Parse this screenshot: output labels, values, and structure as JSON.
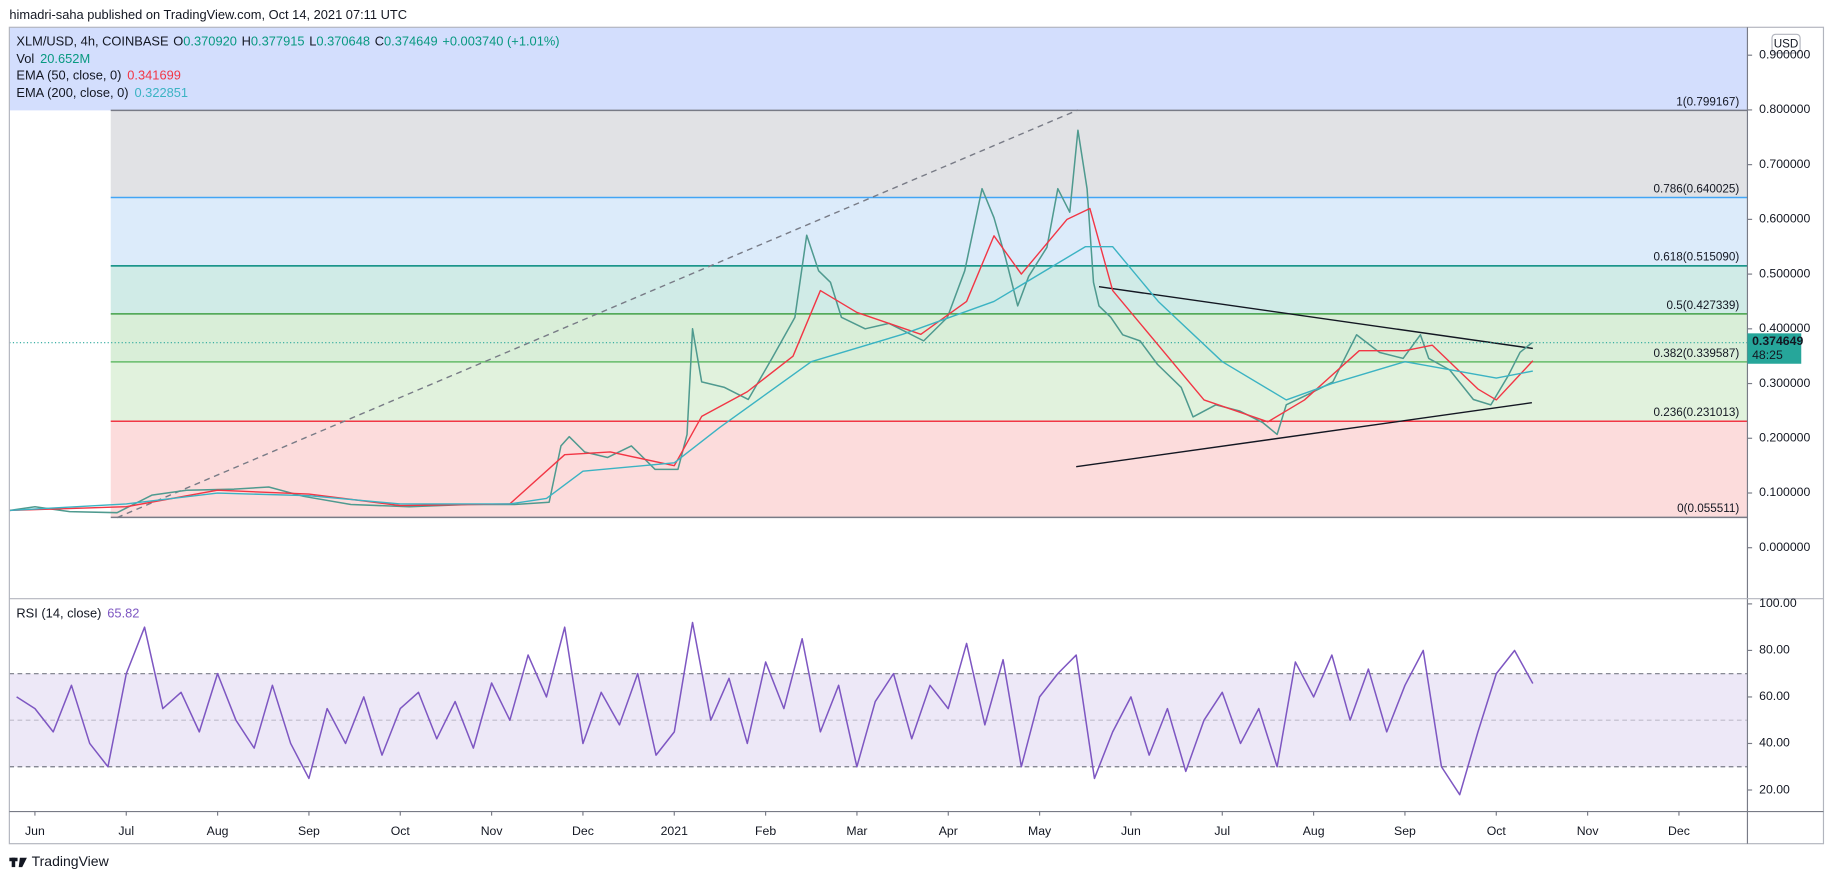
{
  "header": "himadri-saha published on TradingView.com, Oct 14, 2021 07:11 UTC",
  "currency": "USD",
  "footer": "TradingView",
  "chart_data": [
    {
      "type": "line",
      "title": "XLM/USD, 4h, COINBASE",
      "ohlc": [
        {
          "key": "O",
          "value": "0.370920"
        },
        {
          "key": "H",
          "value": "0.377915"
        },
        {
          "key": "L",
          "value": "0.370648"
        },
        {
          "key": "C",
          "value": "0.374649"
        }
      ],
      "change": "+0.003740 (+1.01%)",
      "volume": {
        "name": "Vol",
        "value": "20.652M"
      },
      "xlim": [
        -0.28,
        18.75
      ],
      "ylim": [
        -0.092,
        0.951
      ],
      "yticks": [
        {
          "value": 0,
          "label": "0.000000"
        },
        {
          "value": 0.1,
          "label": "0.100000"
        },
        {
          "value": 0.2,
          "label": "0.200000"
        },
        {
          "value": 0.3,
          "label": "0.300000"
        },
        {
          "value": 0.4,
          "label": "0.400000"
        },
        {
          "value": 0.5,
          "label": "0.500000"
        },
        {
          "value": 0.6,
          "label": "0.600000"
        },
        {
          "value": 0.7,
          "label": "0.700000"
        },
        {
          "value": 0.8,
          "label": "0.800000"
        },
        {
          "value": 0.9,
          "label": "0.900000"
        }
      ],
      "grid": false,
      "top_band_color": "#d3defd",
      "fib_anchor_x": 0.83,
      "fib_levels": [
        {
          "value": 0.799167,
          "label": "1(0.799167)",
          "color": "#787b86",
          "band": "#e1e2e5"
        },
        {
          "value": 0.640025,
          "label": "0.786(0.640025)",
          "color": "#42a5f5",
          "band": "#dcebfa"
        },
        {
          "value": 0.51509,
          "label": "0.618(0.515090)",
          "color": "#00897b",
          "band": "#d0ebe7"
        },
        {
          "value": 0.427339,
          "label": "0.5(0.427339)",
          "color": "#43a047",
          "band": "#d9eed8"
        },
        {
          "value": 0.339587,
          "label": "0.382(0.339587)",
          "color": "#66bb6a",
          "band": "#e1f2dd"
        },
        {
          "value": 0.231013,
          "label": "0.236(0.231013)",
          "color": "#f23645",
          "band": "#fcdcdc"
        },
        {
          "value": 0.055511,
          "label": "0(0.055511)",
          "color": "#787b86",
          "band": null
        }
      ],
      "trendlines": [
        {
          "x": [
            0.9,
            11.42
          ],
          "y": [
            0.055,
            0.8
          ],
          "color": "#787b86",
          "dash": true
        },
        {
          "x": [
            11.65,
            16.4
          ],
          "y": [
            0.477,
            0.364
          ],
          "color": "#131722",
          "dash": false
        },
        {
          "x": [
            11.4,
            16.39
          ],
          "y": [
            0.148,
            0.265
          ],
          "color": "#131722",
          "dash": false
        }
      ],
      "last_price": {
        "value": 0.374649,
        "countdown": "48:25",
        "color": "#26a69a"
      },
      "series": [
        {
          "name": "XLM/USD",
          "color": "#4f9a8f",
          "x": [
            -0.28,
            0,
            0.38,
            0.9,
            1.28,
            1.66,
            2.18,
            2.56,
            2.94,
            3.46,
            4.1,
            4.74,
            5.25,
            5.63,
            5.76,
            5.85,
            6.02,
            6.27,
            6.53,
            6.79,
            7.04,
            7.14,
            7.2,
            7.3,
            7.55,
            7.81,
            8.07,
            8.32,
            8.45,
            8.58,
            8.71,
            8.83,
            9.09,
            9.35,
            9.73,
            9.99,
            10.18,
            10.37,
            10.5,
            10.63,
            10.76,
            10.88,
            11.08,
            11.2,
            11.33,
            11.42,
            11.52,
            11.59,
            11.65,
            11.78,
            11.91,
            12.1,
            12.29,
            12.55,
            12.68,
            12.93,
            13.19,
            13.44,
            13.6,
            13.7,
            13.96,
            14.21,
            14.47,
            14.72,
            14.98,
            15.17,
            15.26,
            15.49,
            15.75,
            15.94,
            16.13,
            16.26,
            16.39
          ],
          "values": [
            0.068,
            0.075,
            0.066,
            0.064,
            0.096,
            0.105,
            0.107,
            0.111,
            0.094,
            0.079,
            0.075,
            0.079,
            0.079,
            0.083,
            0.186,
            0.203,
            0.175,
            0.165,
            0.186,
            0.143,
            0.143,
            0.207,
            0.4,
            0.303,
            0.293,
            0.271,
            0.346,
            0.421,
            0.571,
            0.506,
            0.485,
            0.421,
            0.4,
            0.41,
            0.378,
            0.421,
            0.506,
            0.656,
            0.603,
            0.528,
            0.442,
            0.496,
            0.549,
            0.656,
            0.613,
            0.763,
            0.656,
            0.485,
            0.442,
            0.421,
            0.389,
            0.378,
            0.335,
            0.293,
            0.239,
            0.261,
            0.25,
            0.229,
            0.207,
            0.261,
            0.282,
            0.303,
            0.389,
            0.357,
            0.346,
            0.389,
            0.346,
            0.325,
            0.271,
            0.261,
            0.314,
            0.357,
            0.374649
          ]
        },
        {
          "name": "EMA (50, close, 0)",
          "color": "#f23645",
          "x": [
            -0.28,
            1,
            2,
            3,
            4,
            5.2,
            5.8,
            6.3,
            7,
            7.3,
            7.8,
            8.3,
            8.6,
            9,
            9.7,
            10.2,
            10.5,
            10.8,
            11.3,
            11.55,
            11.8,
            12.3,
            12.8,
            13.5,
            13.9,
            14.5,
            15,
            15.3,
            15.8,
            16,
            16.4
          ],
          "values": [
            0.068,
            0.075,
            0.105,
            0.098,
            0.077,
            0.08,
            0.17,
            0.175,
            0.15,
            0.24,
            0.285,
            0.35,
            0.47,
            0.43,
            0.39,
            0.45,
            0.57,
            0.5,
            0.6,
            0.62,
            0.47,
            0.37,
            0.27,
            0.23,
            0.27,
            0.36,
            0.36,
            0.37,
            0.29,
            0.27,
            0.341699
          ]
        },
        {
          "name": "EMA (200, close, 0)",
          "color": "#3bb3c3",
          "x": [
            -0.28,
            1,
            2,
            3,
            4,
            5.2,
            5.6,
            6,
            7,
            7.5,
            8,
            8.5,
            9.5,
            10.5,
            11.5,
            11.8,
            12.3,
            13,
            13.7,
            14.2,
            15,
            16,
            16.4
          ],
          "values": [
            0.068,
            0.08,
            0.1,
            0.095,
            0.08,
            0.08,
            0.09,
            0.14,
            0.155,
            0.22,
            0.28,
            0.34,
            0.39,
            0.45,
            0.55,
            0.55,
            0.45,
            0.34,
            0.27,
            0.3,
            0.34,
            0.31,
            0.322851
          ]
        }
      ]
    },
    {
      "type": "line",
      "title": "RSI (14, close)",
      "xlim": [
        -0.28,
        18.75
      ],
      "xticks": [
        {
          "value": 0,
          "label": "Jun"
        },
        {
          "value": 1,
          "label": "Jul"
        },
        {
          "value": 2,
          "label": "Aug"
        },
        {
          "value": 3,
          "label": "Sep"
        },
        {
          "value": 4,
          "label": "Oct"
        },
        {
          "value": 5,
          "label": "Nov"
        },
        {
          "value": 6,
          "label": "Dec"
        },
        {
          "value": 7,
          "label": "2021"
        },
        {
          "value": 8,
          "label": "Feb"
        },
        {
          "value": 9,
          "label": "Mar"
        },
        {
          "value": 10,
          "label": "Apr"
        },
        {
          "value": 11,
          "label": "May"
        },
        {
          "value": 12,
          "label": "Jun"
        },
        {
          "value": 13,
          "label": "Jul"
        },
        {
          "value": 14,
          "label": "Aug"
        },
        {
          "value": 15,
          "label": "Sep"
        },
        {
          "value": 16,
          "label": "Oct"
        },
        {
          "value": 17,
          "label": "Nov"
        },
        {
          "value": 18,
          "label": "Dec"
        }
      ],
      "ylim": [
        11,
        102
      ],
      "yticks": [
        {
          "value": 20,
          "label": "20.00"
        },
        {
          "value": 40,
          "label": "40.00"
        },
        {
          "value": 60,
          "label": "60.00"
        },
        {
          "value": 80,
          "label": "80.00"
        },
        {
          "value": 100,
          "label": "100.00"
        }
      ],
      "levels": [
        70,
        50,
        30
      ],
      "band_color": "#ede8f7",
      "series": [
        {
          "name": "RSI",
          "color": "#7e57c2",
          "x": [
            -0.2,
            0,
            0.2,
            0.4,
            0.6,
            0.8,
            1,
            1.2,
            1.4,
            1.6,
            1.8,
            2,
            2.2,
            2.4,
            2.6,
            2.8,
            3,
            3.2,
            3.4,
            3.6,
            3.8,
            4,
            4.2,
            4.4,
            4.6,
            4.8,
            5,
            5.2,
            5.4,
            5.6,
            5.8,
            6,
            6.2,
            6.4,
            6.6,
            6.8,
            7,
            7.2,
            7.4,
            7.6,
            7.8,
            8,
            8.2,
            8.4,
            8.6,
            8.8,
            9,
            9.2,
            9.4,
            9.6,
            9.8,
            10,
            10.2,
            10.4,
            10.6,
            10.8,
            11,
            11.2,
            11.4,
            11.6,
            11.8,
            12,
            12.2,
            12.4,
            12.6,
            12.8,
            13,
            13.2,
            13.4,
            13.6,
            13.8,
            14,
            14.2,
            14.4,
            14.6,
            14.8,
            15,
            15.2,
            15.4,
            15.6,
            15.8,
            16,
            16.2,
            16.4
          ],
          "values": [
            60,
            55,
            45,
            65,
            40,
            30,
            70,
            90,
            55,
            62,
            45,
            70,
            50,
            38,
            65,
            40,
            25,
            55,
            40,
            60,
            35,
            55,
            62,
            42,
            58,
            38,
            66,
            50,
            78,
            60,
            90,
            40,
            62,
            48,
            70,
            35,
            45,
            92,
            50,
            68,
            40,
            75,
            55,
            85,
            45,
            65,
            30,
            58,
            70,
            42,
            65,
            55,
            83,
            48,
            76,
            30,
            60,
            70,
            78,
            25,
            45,
            60,
            35,
            55,
            28,
            50,
            62,
            40,
            55,
            30,
            75,
            60,
            78,
            50,
            72,
            45,
            65,
            80,
            30,
            18,
            45,
            70,
            80,
            65.82
          ]
        }
      ]
    }
  ]
}
